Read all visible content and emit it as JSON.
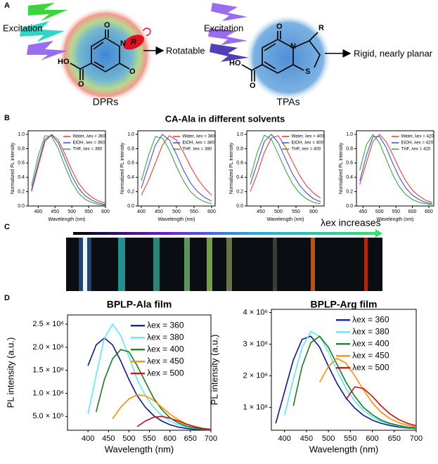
{
  "panel_labels": [
    "A",
    "B",
    "C",
    "D"
  ],
  "diagram": {
    "left": {
      "excitation": "Excitation",
      "atoms": [
        "O",
        "N",
        "R",
        "O",
        "HO",
        "O"
      ],
      "arrow_label": "Rotatable",
      "name": "DPRs"
    },
    "right": {
      "excitation": "Excitation",
      "atoms": [
        "O",
        "N",
        "R",
        "S",
        "HO",
        "O"
      ],
      "arrow_label": "Rigid, nearly planar",
      "name": "TPAs"
    }
  },
  "section_title": "CA-Ala in different solvents",
  "image_strip": {
    "label": "λex increases"
  },
  "chart_data": [
    {
      "type": "line",
      "x_label": "Wavelength (nm)",
      "y_label": "Normalized PL intensity",
      "legend": "upper right",
      "x": [
        380,
        400,
        420,
        440,
        460,
        480,
        500,
        520,
        540,
        560,
        580,
        600
      ],
      "xlim": [
        370,
        600
      ],
      "xticks": [
        400,
        450,
        500,
        550,
        600
      ],
      "ylim": [
        0,
        1.05
      ],
      "yticks": [
        {
          "value": 0,
          "label": "0.0"
        },
        0.2,
        0.4,
        0.6,
        0.8,
        {
          "value": 1,
          "label": "1.0"
        }
      ],
      "series": [
        {
          "name": "Water, λex = 360",
          "color": "#e0302a",
          "values": [
            0.2,
            0.55,
            0.9,
            1.0,
            0.92,
            0.72,
            0.5,
            0.32,
            0.2,
            0.12,
            0.07,
            0.04
          ]
        },
        {
          "name": "EtOH, λex = 360",
          "color": "#3040d0",
          "values": [
            0.22,
            0.6,
            0.93,
            0.99,
            0.88,
            0.65,
            0.42,
            0.25,
            0.14,
            0.08,
            0.04,
            0.02
          ]
        },
        {
          "name": "THF, λex = 360",
          "color": "#2ca02c",
          "values": [
            0.28,
            0.7,
            0.98,
            0.97,
            0.8,
            0.55,
            0.33,
            0.18,
            0.09,
            0.05,
            0.02,
            0.01
          ]
        }
      ]
    },
    {
      "type": "line",
      "x_label": "Wavelength (nm)",
      "y_label": "Normalized PL intensity",
      "legend": "upper right",
      "x": [
        400,
        420,
        440,
        460,
        480,
        500,
        520,
        540,
        560,
        580,
        600
      ],
      "xlim": [
        390,
        610
      ],
      "xticks": [
        400,
        450,
        500,
        550,
        600
      ],
      "ylim": [
        0,
        1.05
      ],
      "yticks": [
        {
          "value": 0,
          "label": "0.0"
        },
        0.2,
        0.4,
        0.6,
        0.8,
        {
          "value": 1,
          "label": "1.0"
        }
      ],
      "series": [
        {
          "name": "Water, λex = 380",
          "color": "#e0302a",
          "values": [
            0.15,
            0.35,
            0.6,
            0.85,
            0.98,
            0.92,
            0.75,
            0.55,
            0.38,
            0.25,
            0.15
          ]
        },
        {
          "name": "EtOH, λex = 380",
          "color": "#3040d0",
          "values": [
            0.25,
            0.55,
            0.85,
            1.0,
            0.92,
            0.72,
            0.5,
            0.32,
            0.2,
            0.12,
            0.07
          ]
        },
        {
          "name": "THF, λex = 380",
          "color": "#2ca02c",
          "values": [
            0.35,
            0.7,
            0.97,
            0.95,
            0.78,
            0.55,
            0.35,
            0.2,
            0.11,
            0.06,
            0.03
          ]
        }
      ]
    },
    {
      "type": "line",
      "x_label": "Wavelength (nm)",
      "y_label": "Normalized PL intensity",
      "legend": "upper right",
      "x": [
        420,
        440,
        460,
        480,
        500,
        520,
        540,
        560,
        580,
        600,
        620
      ],
      "xlim": [
        410,
        630
      ],
      "xticks": [
        450,
        500,
        550,
        600
      ],
      "ylim": [
        0,
        1.05
      ],
      "yticks": [
        {
          "value": 0,
          "label": "0.0"
        },
        0.2,
        0.4,
        0.6,
        0.8,
        {
          "value": 1,
          "label": "1.0"
        }
      ],
      "series": [
        {
          "name": "Water, λex = 400",
          "color": "#e0302a",
          "values": [
            0.2,
            0.45,
            0.75,
            0.95,
            0.98,
            0.82,
            0.62,
            0.43,
            0.28,
            0.18,
            0.11
          ]
        },
        {
          "name": "EtOH, λex = 400",
          "color": "#3040d0",
          "values": [
            0.3,
            0.6,
            0.9,
            1.0,
            0.88,
            0.66,
            0.45,
            0.29,
            0.18,
            0.1,
            0.06
          ]
        },
        {
          "name": "THF, λex = 400",
          "color": "#2ca02c",
          "values": [
            0.4,
            0.75,
            0.99,
            0.93,
            0.72,
            0.5,
            0.31,
            0.18,
            0.1,
            0.05,
            0.03
          ]
        }
      ]
    },
    {
      "type": "line",
      "x_label": "Wavelength (nm)",
      "y_label": "Normalized PL intensity",
      "legend": "upper right",
      "x": [
        440,
        460,
        480,
        500,
        520,
        540,
        560,
        580,
        600,
        620,
        640,
        660
      ],
      "xlim": [
        430,
        665
      ],
      "xticks": [
        450,
        500,
        550,
        600,
        650
      ],
      "ylim": [
        0,
        1.05
      ],
      "yticks": [
        {
          "value": 0,
          "label": "0.0"
        },
        0.2,
        0.4,
        0.6,
        0.8,
        {
          "value": 1,
          "label": "1.0"
        }
      ],
      "series": [
        {
          "name": "Water, λex = 420",
          "color": "#e0302a",
          "values": [
            0.3,
            0.6,
            0.9,
            1.0,
            0.9,
            0.72,
            0.52,
            0.35,
            0.22,
            0.14,
            0.08,
            0.05
          ]
        },
        {
          "name": "EtOH, λex = 420",
          "color": "#3040d0",
          "values": [
            0.35,
            0.7,
            0.97,
            0.97,
            0.82,
            0.6,
            0.4,
            0.25,
            0.15,
            0.09,
            0.05,
            0.03
          ]
        },
        {
          "name": "THF, λex = 420",
          "color": "#2ca02c",
          "values": [
            0.5,
            0.85,
            1.0,
            0.88,
            0.66,
            0.44,
            0.27,
            0.16,
            0.09,
            0.05,
            0.03,
            0.02
          ]
        }
      ]
    },
    {
      "type": "line",
      "title": "BPLP-Ala film",
      "x_label": "Wavelength (nm)",
      "y_label": "PL intensity (a.u.)",
      "legend": "upper right",
      "x": [
        380,
        400,
        420,
        440,
        460,
        480,
        500,
        520,
        540,
        560,
        580,
        600,
        620,
        640,
        660,
        680,
        700
      ],
      "xlim": [
        350,
        700
      ],
      "xticks": [
        400,
        450,
        500,
        550,
        600,
        650,
        700
      ],
      "ylim": [
        200000,
        2700000
      ],
      "yticks": [
        {
          "value": 500000,
          "label": "5.0 × 10⁵"
        },
        {
          "value": 1000000,
          "label": "1.0 × 10⁶"
        },
        {
          "value": 1500000,
          "label": "1.5 × 10⁶"
        },
        {
          "value": 2000000,
          "label": "2.0 × 10⁶"
        },
        {
          "value": 2500000,
          "label": "2.5 × 10⁶"
        }
      ],
      "series": [
        {
          "name": "λex = 360",
          "color": "#0d1a8a",
          "values": [
            null,
            1600000,
            2050000,
            2200000,
            2050000,
            1700000,
            1300000,
            950000,
            700000,
            520000,
            400000,
            320000,
            270000,
            240000,
            220000,
            210000,
            200000
          ]
        },
        {
          "name": "λex = 380",
          "color": "#5ee8f5",
          "values": [
            null,
            550000,
            1400000,
            2200000,
            2500000,
            2250000,
            1800000,
            1300000,
            950000,
            700000,
            520000,
            400000,
            320000,
            270000,
            240000,
            220000,
            210000
          ]
        },
        {
          "name": "λex = 400",
          "color": "#1a7a1a",
          "values": [
            null,
            null,
            600000,
            1300000,
            1750000,
            1950000,
            1900000,
            1600000,
            1250000,
            900000,
            650000,
            470000,
            360000,
            290000,
            250000,
            220000,
            210000
          ]
        },
        {
          "name": "λex = 450",
          "color": "#ff8c00",
          "values": [
            null,
            null,
            null,
            null,
            450000,
            700000,
            880000,
            970000,
            950000,
            850000,
            700000,
            550000,
            430000,
            340000,
            280000,
            240000,
            220000
          ]
        },
        {
          "name": "λex = 500",
          "color": "#c0101a",
          "values": [
            null,
            null,
            null,
            null,
            null,
            null,
            null,
            280000,
            400000,
            480000,
            500000,
            460000,
            400000,
            330000,
            280000,
            240000,
            220000
          ]
        }
      ]
    },
    {
      "type": "line",
      "title": "BPLP-Arg film",
      "x_label": "Wavelength (nm)",
      "y_label": "PL intensity (a.u.)",
      "legend": "upper right",
      "x": [
        380,
        400,
        420,
        440,
        460,
        480,
        500,
        520,
        540,
        560,
        580,
        600,
        620,
        640,
        660,
        680,
        700
      ],
      "xlim": [
        370,
        700
      ],
      "xticks": [
        400,
        450,
        500,
        550,
        600,
        650,
        700
      ],
      "ylim": [
        280000,
        4100000
      ],
      "yticks": [
        {
          "value": 1000000,
          "label": "1 × 10⁶"
        },
        {
          "value": 2000000,
          "label": "2 × 10⁶"
        },
        {
          "value": 3000000,
          "label": "3 × 10⁶"
        },
        {
          "value": 4000000,
          "label": "4 × 10⁶"
        }
      ],
      "series": [
        {
          "name": "λex = 360",
          "color": "#0d1a8a",
          "values": [
            500000,
            1500000,
            2500000,
            3150000,
            3250000,
            2900000,
            2300000,
            1750000,
            1300000,
            980000,
            750000,
            600000,
            500000,
            430000,
            380000,
            350000,
            330000
          ]
        },
        {
          "name": "λex = 380",
          "color": "#5ee8f5",
          "values": [
            null,
            750000,
            1900000,
            2900000,
            3400000,
            3250000,
            2750000,
            2150000,
            1600000,
            1200000,
            900000,
            700000,
            560000,
            470000,
            410000,
            370000,
            340000
          ]
        },
        {
          "name": "λex = 400",
          "color": "#1a7a1a",
          "values": [
            null,
            null,
            1050000,
            2300000,
            3050000,
            3250000,
            2900000,
            2350000,
            1800000,
            1350000,
            1000000,
            770000,
            600000,
            500000,
            430000,
            380000,
            350000
          ]
        },
        {
          "name": "λex = 450",
          "color": "#ff8c00",
          "values": [
            null,
            null,
            null,
            null,
            null,
            1800000,
            2300000,
            2550000,
            2400000,
            2000000,
            1550000,
            1150000,
            850000,
            650000,
            520000,
            440000,
            380000
          ]
        },
        {
          "name": "λex = 500",
          "color": "#c0101a",
          "values": [
            null,
            null,
            null,
            null,
            null,
            null,
            null,
            null,
            1250000,
            1650000,
            1600000,
            1350000,
            1050000,
            800000,
            620000,
            500000,
            420000
          ]
        }
      ]
    }
  ]
}
